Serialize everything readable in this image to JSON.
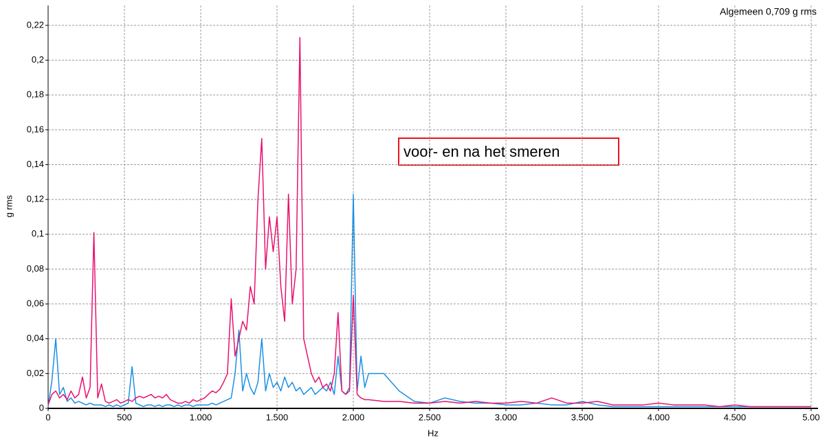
{
  "chart_data": {
    "type": "line",
    "xlabel": "Hz",
    "ylabel": "g rms",
    "annotations": [
      "Algemeen 0,709 g rms",
      "voor- en na het smeren"
    ],
    "xlim": [
      0,
      5045
    ],
    "ylim": [
      0,
      0.2314
    ],
    "grid": true,
    "xticks": [
      0,
      500,
      {
        "value": 1000,
        "label": "1.000"
      },
      {
        "value": 1500,
        "label": "1.500"
      },
      {
        "value": 2000,
        "label": "2.000"
      },
      {
        "value": 2500,
        "label": "2.500"
      },
      {
        "value": 3000,
        "label": "3.000"
      },
      {
        "value": 3500,
        "label": "3.500"
      },
      {
        "value": 4000,
        "label": "4.000"
      },
      {
        "value": 4500,
        "label": "4.500"
      },
      {
        "value": 5000,
        "label": "5.00"
      }
    ],
    "yticks": [
      0,
      {
        "value": 0.02,
        "label": "0,02"
      },
      {
        "value": 0.04,
        "label": "0,04"
      },
      {
        "value": 0.06,
        "label": "0,06"
      },
      {
        "value": 0.08,
        "label": "0,08"
      },
      {
        "value": 0.1,
        "label": "0,1"
      },
      {
        "value": 0.12,
        "label": "0,12"
      },
      {
        "value": 0.14,
        "label": "0,14"
      },
      {
        "value": 0.16,
        "label": "0,16"
      },
      {
        "value": 0.18,
        "label": "0,18"
      },
      {
        "value": 0.2,
        "label": "0,2"
      },
      {
        "value": 0.22,
        "label": "0,22"
      }
    ],
    "x": [
      0,
      25,
      50,
      75,
      100,
      125,
      150,
      175,
      200,
      225,
      250,
      275,
      300,
      325,
      350,
      375,
      400,
      425,
      450,
      475,
      500,
      525,
      550,
      575,
      600,
      625,
      650,
      675,
      700,
      725,
      750,
      775,
      800,
      825,
      850,
      875,
      900,
      925,
      950,
      975,
      1000,
      1025,
      1050,
      1075,
      1100,
      1125,
      1150,
      1175,
      1200,
      1225,
      1250,
      1275,
      1300,
      1325,
      1350,
      1375,
      1400,
      1425,
      1450,
      1475,
      1500,
      1525,
      1550,
      1575,
      1600,
      1625,
      1650,
      1675,
      1700,
      1725,
      1750,
      1775,
      1800,
      1825,
      1850,
      1875,
      1900,
      1925,
      1950,
      1975,
      2000,
      2025,
      2050,
      2075,
      2100,
      2200,
      2300,
      2400,
      2500,
      2600,
      2700,
      2800,
      2900,
      3000,
      3100,
      3200,
      3300,
      3400,
      3500,
      3600,
      3700,
      3800,
      3900,
      4000,
      4100,
      4200,
      4300,
      4400,
      4500,
      4600,
      4700,
      4800,
      4900,
      5000
    ],
    "series": [
      {
        "color": "#1a8fe3",
        "values": [
          0.001,
          0.016,
          0.04,
          0.008,
          0.012,
          0.004,
          0.006,
          0.003,
          0.004,
          0.003,
          0.002,
          0.003,
          0.002,
          0.002,
          0.002,
          0.001,
          0.002,
          0.001,
          0.002,
          0.001,
          0.002,
          0.003,
          0.024,
          0.003,
          0.002,
          0.001,
          0.002,
          0.002,
          0.001,
          0.002,
          0.001,
          0.002,
          0.002,
          0.001,
          0.002,
          0.001,
          0.002,
          0.002,
          0.001,
          0.002,
          0.002,
          0.002,
          0.002,
          0.003,
          0.002,
          0.003,
          0.004,
          0.005,
          0.006,
          0.02,
          0.045,
          0.01,
          0.02,
          0.012,
          0.008,
          0.015,
          0.04,
          0.01,
          0.02,
          0.012,
          0.015,
          0.01,
          0.018,
          0.012,
          0.015,
          0.01,
          0.012,
          0.008,
          0.01,
          0.012,
          0.008,
          0.01,
          0.012,
          0.01,
          0.015,
          0.008,
          0.03,
          0.01,
          0.008,
          0.012,
          0.123,
          0.01,
          0.03,
          0.012,
          0.02,
          0.02,
          0.01,
          0.004,
          0.003,
          0.006,
          0.004,
          0.003,
          0.003,
          0.002,
          0.002,
          0.003,
          0.002,
          0.002,
          0.004,
          0.002,
          0.001,
          0.001,
          0.001,
          0.001,
          0.001,
          0.001,
          0.001,
          0.001,
          0.001,
          0.001,
          0.001,
          0.001,
          0.001,
          0.001
        ]
      },
      {
        "color": "#e8106e",
        "values": [
          0.002,
          0.008,
          0.01,
          0.006,
          0.008,
          0.005,
          0.01,
          0.006,
          0.008,
          0.018,
          0.006,
          0.012,
          0.101,
          0.006,
          0.014,
          0.004,
          0.003,
          0.004,
          0.005,
          0.003,
          0.004,
          0.005,
          0.004,
          0.006,
          0.007,
          0.006,
          0.007,
          0.008,
          0.006,
          0.007,
          0.006,
          0.008,
          0.005,
          0.004,
          0.003,
          0.003,
          0.004,
          0.003,
          0.005,
          0.004,
          0.005,
          0.006,
          0.008,
          0.01,
          0.009,
          0.011,
          0.015,
          0.02,
          0.063,
          0.03,
          0.04,
          0.05,
          0.045,
          0.07,
          0.06,
          0.12,
          0.155,
          0.08,
          0.11,
          0.09,
          0.11,
          0.07,
          0.05,
          0.123,
          0.06,
          0.08,
          0.213,
          0.04,
          0.03,
          0.02,
          0.015,
          0.018,
          0.012,
          0.014,
          0.01,
          0.02,
          0.055,
          0.01,
          0.008,
          0.01,
          0.065,
          0.008,
          0.006,
          0.005,
          0.005,
          0.004,
          0.004,
          0.003,
          0.003,
          0.004,
          0.003,
          0.004,
          0.003,
          0.003,
          0.004,
          0.003,
          0.006,
          0.003,
          0.003,
          0.004,
          0.002,
          0.002,
          0.002,
          0.003,
          0.002,
          0.002,
          0.002,
          0.001,
          0.002,
          0.001,
          0.001,
          0.001,
          0.001,
          0.001
        ]
      }
    ]
  }
}
